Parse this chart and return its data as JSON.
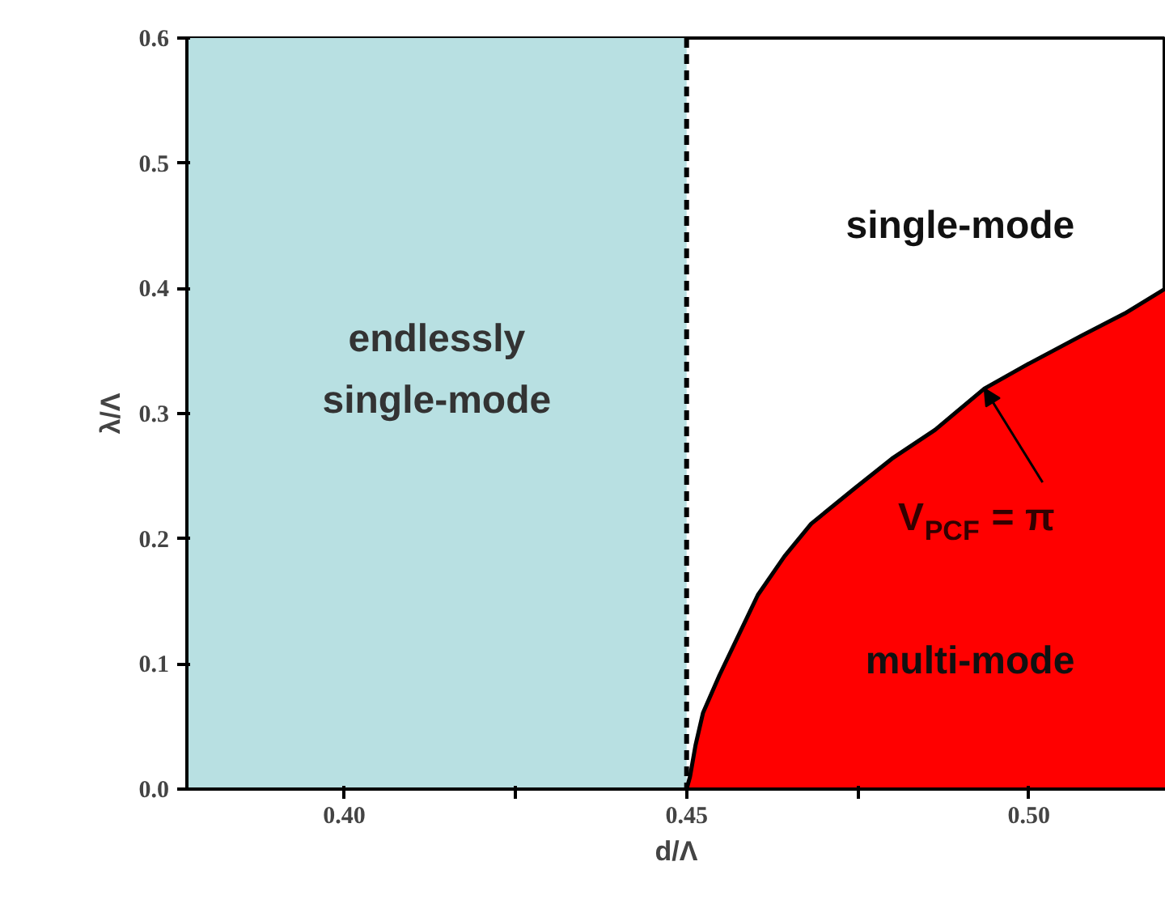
{
  "chart_data": {
    "type": "area",
    "xlabel": "d/Λ",
    "ylabel": "λ/Λ",
    "xlim": [
      0.377,
      0.52
    ],
    "ylim": [
      0,
      0.6
    ],
    "xticks": [
      {
        "value": 0.4,
        "label": "0.40"
      },
      {
        "value": 0.425,
        "label": null
      },
      {
        "value": 0.45,
        "label": "0.45"
      },
      {
        "value": 0.475,
        "label": null
      },
      {
        "value": 0.5,
        "label": "0.50"
      }
    ],
    "yticks": [
      {
        "value": 0,
        "label": "0.0"
      },
      {
        "value": 0.1,
        "label": "0.1"
      },
      {
        "value": 0.2,
        "label": "0.2"
      },
      {
        "value": 0.3,
        "label": "0.3"
      },
      {
        "value": 0.4,
        "label": "0.4"
      },
      {
        "value": 0.5,
        "label": "0.5"
      },
      {
        "value": 0.6,
        "label": "0.6"
      }
    ],
    "series": [
      {
        "color": "#ff0000",
        "x": [
          0.45,
          0.4505,
          0.4513,
          0.4524,
          0.4548,
          0.4604,
          0.4643,
          0.4682,
          0.4745,
          0.48,
          0.4863,
          0.4935,
          0.4997,
          0.5076,
          0.514,
          0.52
        ],
        "values": [
          0,
          0.01,
          0.035,
          0.061,
          0.091,
          0.155,
          0.186,
          0.212,
          0.24,
          0.264,
          0.287,
          0.32,
          0.339,
          0.362,
          0.38,
          0.4
        ]
      }
    ],
    "bands": [
      {
        "axis": "x",
        "from": 0.377,
        "to": 0.45,
        "label": "endlessly\nsingle-mode",
        "color": "#b8e0e2"
      }
    ],
    "ref_lines": [
      {
        "axis": "x",
        "value": 0.45,
        "line_style": "dashed"
      }
    ],
    "annotations": [
      "single-mode",
      "multi-mode",
      {
        "text": "V$_{PCF}$ = π",
        "x": 0.4935,
        "y": 0.32
      }
    ],
    "grid": false
  }
}
